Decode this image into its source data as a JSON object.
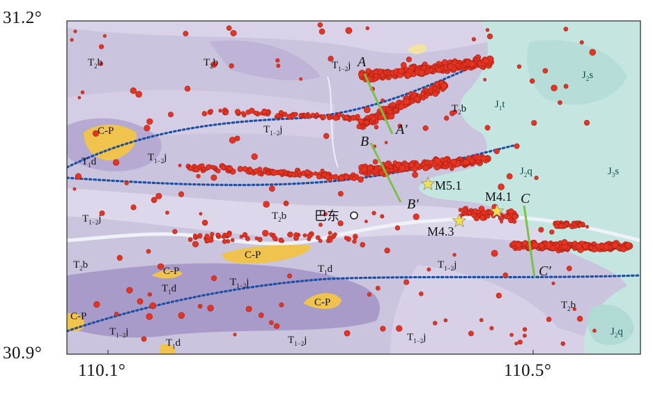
{
  "map": {
    "axes": {
      "lat_top": "31.2°",
      "lat_bottom": "30.9°",
      "lon_left": "110.1°",
      "lon_right": "110.5°"
    },
    "colors": {
      "base": "#cbc4de",
      "dark_purple": "#a597c6",
      "light_purple": "#e3ddee",
      "teal": "#c7e6e3",
      "yellow": "#efc34e",
      "quake": "#e63422",
      "profile_line": "#7cc242",
      "fault_line": "#1d4fa2",
      "star": "#f4e04d"
    },
    "city": {
      "name": "巴东"
    },
    "profiles": [
      {
        "start": "A",
        "end": "A′"
      },
      {
        "start": "B",
        "end": "B′"
      },
      {
        "start": "C",
        "end": "C′"
      }
    ],
    "mainshocks": [
      {
        "label": "M5.1"
      },
      {
        "label": "M4.3"
      },
      {
        "label": "M4.1"
      }
    ],
    "units": [
      {
        "base": "T",
        "sub": "2",
        "tail": "b"
      },
      {
        "base": "T",
        "sub": "2",
        "tail": "b"
      },
      {
        "base": "T",
        "sub": "1−2",
        "tail": "j"
      },
      {
        "base": "J",
        "sub": "2",
        "tail": "s"
      },
      {
        "base": "J",
        "sub": "1",
        "tail": "t"
      },
      {
        "base": "T",
        "sub": "2",
        "tail": "b"
      },
      {
        "base": "C-P",
        "sub": "",
        "tail": ""
      },
      {
        "base": "T",
        "sub": "1−2",
        "tail": "j"
      },
      {
        "base": "T",
        "sub": "1",
        "tail": "d"
      },
      {
        "base": "T",
        "sub": "1−2",
        "tail": "j"
      },
      {
        "base": "J",
        "sub": "2",
        "tail": "q"
      },
      {
        "base": "J",
        "sub": "3",
        "tail": "s"
      },
      {
        "base": "T",
        "sub": "1−2",
        "tail": "j"
      },
      {
        "base": "T",
        "sub": "2",
        "tail": "b"
      },
      {
        "base": "T",
        "sub": "2",
        "tail": "b"
      },
      {
        "base": "C-P",
        "sub": "",
        "tail": ""
      },
      {
        "base": "T",
        "sub": "1",
        "tail": "d"
      },
      {
        "base": "C-P",
        "sub": "",
        "tail": ""
      },
      {
        "base": "T",
        "sub": "1",
        "tail": "d"
      },
      {
        "base": "T",
        "sub": "1−2",
        "tail": "j"
      },
      {
        "base": "T",
        "sub": "1−2",
        "tail": "j"
      },
      {
        "base": "C-P",
        "sub": "",
        "tail": ""
      },
      {
        "base": "C-P",
        "sub": "",
        "tail": ""
      },
      {
        "base": "T",
        "sub": "1−2",
        "tail": "j"
      },
      {
        "base": "T",
        "sub": "1",
        "tail": "d"
      },
      {
        "base": "T",
        "sub": "1−2",
        "tail": "j"
      },
      {
        "base": "T",
        "sub": "1−2",
        "tail": "j"
      },
      {
        "base": "T",
        "sub": "2",
        "tail": "b"
      },
      {
        "base": "J",
        "sub": "2",
        "tail": "q"
      }
    ]
  }
}
